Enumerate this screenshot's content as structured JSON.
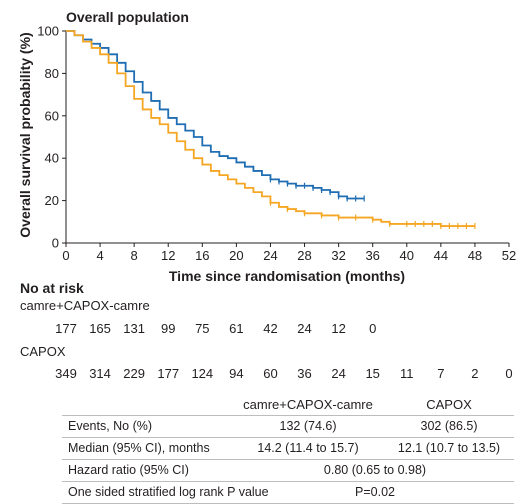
{
  "chart_data": {
    "type": "line",
    "title": "Overall population",
    "xlabel": "Time since randomisation (months)",
    "ylabel": "Overall survival probability (%)",
    "xlim": [
      0,
      52
    ],
    "ylim": [
      0,
      100
    ],
    "xticks": [
      0,
      4,
      8,
      12,
      16,
      20,
      24,
      28,
      32,
      36,
      40,
      44,
      48,
      52
    ],
    "yticks": [
      0,
      20,
      40,
      60,
      80,
      100
    ],
    "grid": false,
    "legend": "none",
    "series": [
      {
        "name": "camre+CAPOX-camre",
        "color": "#1f6db3",
        "step": true,
        "x": [
          0,
          1,
          2,
          3,
          4,
          5,
          6,
          7,
          8,
          9,
          10,
          11,
          12,
          13,
          14,
          15,
          16,
          17,
          18,
          19,
          20,
          21,
          22,
          23,
          24,
          25,
          26,
          27,
          28,
          29,
          30,
          31,
          32,
          33,
          34,
          35
        ],
        "y": [
          100,
          98,
          96,
          94,
          92,
          89,
          85,
          81,
          76,
          71,
          67,
          63,
          59,
          56,
          53,
          50,
          46,
          43,
          41,
          40,
          38,
          36,
          34,
          32,
          30,
          29,
          28,
          27,
          27,
          26,
          25,
          24,
          22,
          21,
          21,
          21
        ],
        "censor_x": [
          24,
          25,
          26,
          27,
          28,
          29,
          30,
          31,
          32,
          33,
          34,
          35
        ]
      },
      {
        "name": "CAPOX",
        "color": "#f5a623",
        "step": true,
        "x": [
          0,
          1,
          2,
          3,
          4,
          5,
          6,
          7,
          8,
          9,
          10,
          11,
          12,
          13,
          14,
          15,
          16,
          17,
          18,
          19,
          20,
          21,
          22,
          23,
          24,
          25,
          26,
          27,
          28,
          29,
          30,
          31,
          32,
          33,
          34,
          35,
          36,
          37,
          38,
          39,
          40,
          41,
          42,
          43,
          44,
          45,
          46,
          47,
          48
        ],
        "y": [
          100,
          98,
          95,
          92,
          89,
          85,
          80,
          74,
          68,
          63,
          59,
          56,
          52,
          48,
          44,
          40,
          37,
          34,
          32,
          30,
          28,
          26,
          24,
          22,
          19,
          17,
          16,
          15,
          14,
          14,
          13,
          13,
          12,
          12,
          12,
          12,
          11,
          10,
          9,
          9,
          9,
          9,
          9,
          9,
          8,
          8,
          8,
          8,
          8
        ],
        "censor_x": [
          24,
          26,
          28,
          30,
          32,
          34,
          36,
          38,
          40,
          41,
          42,
          43,
          44,
          45,
          46,
          47,
          48
        ]
      }
    ]
  },
  "risk_table": {
    "heading": "No at risk",
    "groups": [
      {
        "label": "camre+CAPOX-camre",
        "values": [
          "177",
          "165",
          "131",
          "99",
          "75",
          "61",
          "42",
          "24",
          "12",
          "0"
        ]
      },
      {
        "label": "CAPOX",
        "values": [
          "349",
          "314",
          "229",
          "177",
          "124",
          "94",
          "60",
          "36",
          "24",
          "15",
          "11",
          "7",
          "2",
          "0"
        ]
      }
    ]
  },
  "stats_table": {
    "col1": "camre+CAPOX-camre",
    "col2": "CAPOX",
    "events_label": "Events, No (%)",
    "events_camre": "132 (74.6)",
    "events_capox": "302 (86.5)",
    "median_label": "Median (95% CI), months",
    "median_camre": "14.2 (11.4 to 15.7)",
    "median_capox": "12.1 (10.7 to 13.5)",
    "hr_label": "Hazard ratio (95% CI)",
    "hr_value": "0.80 (0.65 to 0.98)",
    "p_label": "One sided stratified log rank P value",
    "p_value": "P=0.02"
  }
}
